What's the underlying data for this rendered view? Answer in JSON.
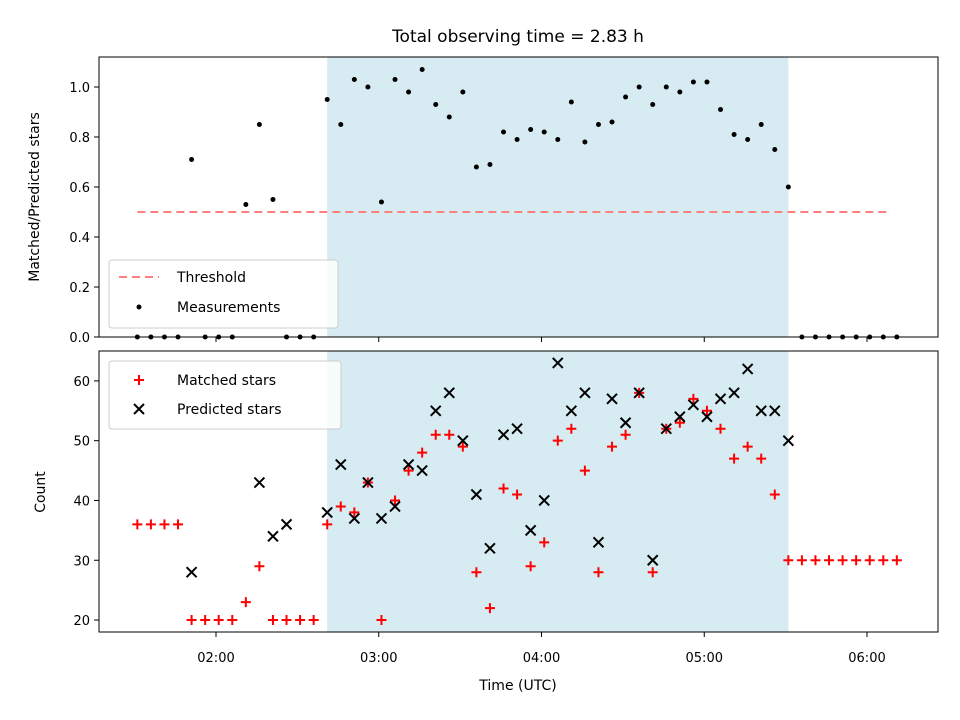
{
  "chart_data": [
    {
      "type": "scatter",
      "title": "Total observing time = 2.83 h",
      "ylabel": "Matched/Predicted stars",
      "xlabel": "",
      "ylim": [
        0,
        1.12
      ],
      "yticks": [
        "0.0",
        "0.2",
        "0.4",
        "0.6",
        "0.8",
        "1.0"
      ],
      "highlight_span": [
        "02:41",
        "05:31"
      ],
      "highlight_color": "#add8e6",
      "legend": {
        "placement": "lower-left",
        "entries": [
          "Threshold",
          "Measurements"
        ]
      },
      "series": [
        {
          "name": "Threshold",
          "style": "dashed-line",
          "color": "#ff7f7f",
          "x": [
            "01:31",
            "06:09"
          ],
          "y": [
            0.5,
            0.5
          ]
        },
        {
          "name": "Measurements",
          "style": "dot",
          "color": "#000000",
          "x": [
            "01:31",
            "01:36",
            "01:41",
            "01:46",
            "01:51",
            "01:56",
            "02:01",
            "02:06",
            "02:11",
            "02:16",
            "02:21",
            "02:26",
            "02:31",
            "02:36",
            "02:41",
            "02:46",
            "02:51",
            "02:56",
            "03:01",
            "03:06",
            "03:11",
            "03:16",
            "03:21",
            "03:26",
            "03:31",
            "03:36",
            "03:41",
            "03:46",
            "03:51",
            "03:56",
            "04:01",
            "04:06",
            "04:11",
            "04:16",
            "04:21",
            "04:26",
            "04:31",
            "04:36",
            "04:41",
            "04:46",
            "04:51",
            "04:56",
            "05:01",
            "05:06",
            "05:11",
            "05:16",
            "05:21",
            "05:26",
            "05:31",
            "05:36",
            "05:41",
            "05:46",
            "05:51",
            "05:56",
            "06:01",
            "06:06",
            "06:11"
          ],
          "y": [
            0,
            0,
            0,
            0,
            0.71,
            0,
            0,
            0,
            0.53,
            0.85,
            0.55,
            0,
            0,
            0,
            0.95,
            0.85,
            1.03,
            1.0,
            0.54,
            1.03,
            0.98,
            1.07,
            0.93,
            0.88,
            0.98,
            0.68,
            0.69,
            0.82,
            0.79,
            0.83,
            0.82,
            0.79,
            0.94,
            0.78,
            0.85,
            0.86,
            0.96,
            1.0,
            0.93,
            1.0,
            0.98,
            1.02,
            1.02,
            0.91,
            0.81,
            0.79,
            0.85,
            0.75,
            0.6,
            0,
            0,
            0,
            0,
            0,
            0,
            0,
            0
          ]
        }
      ]
    },
    {
      "type": "scatter",
      "title": "",
      "xlabel": "Time (UTC)",
      "ylabel": "Count",
      "ylim": [
        18,
        65
      ],
      "yticks": [
        "20",
        "30",
        "40",
        "50",
        "60"
      ],
      "xticks": [
        "02:00",
        "03:00",
        "04:00",
        "05:00",
        "06:00"
      ],
      "highlight_span": [
        "02:41",
        "05:31"
      ],
      "highlight_color": "#add8e6",
      "legend": {
        "placement": "upper-left",
        "entries": [
          "Matched stars",
          "Predicted stars"
        ]
      },
      "series": [
        {
          "name": "Matched stars",
          "style": "plus",
          "color": "#ff0000",
          "x": [
            "01:31",
            "01:36",
            "01:41",
            "01:46",
            "01:51",
            "01:56",
            "02:01",
            "02:06",
            "02:11",
            "02:16",
            "02:21",
            "02:26",
            "02:31",
            "02:36",
            "02:41",
            "02:46",
            "02:51",
            "02:56",
            "03:01",
            "03:06",
            "03:11",
            "03:16",
            "03:21",
            "03:26",
            "03:31",
            "03:36",
            "03:41",
            "03:46",
            "03:51",
            "03:56",
            "04:01",
            "04:06",
            "04:11",
            "04:16",
            "04:21",
            "04:26",
            "04:31",
            "04:36",
            "04:41",
            "04:46",
            "04:51",
            "04:56",
            "05:01",
            "05:06",
            "05:11",
            "05:16",
            "05:21",
            "05:26",
            "05:31",
            "05:36",
            "05:41",
            "05:46",
            "05:51",
            "05:56",
            "06:01",
            "06:06",
            "06:11"
          ],
          "y": [
            36,
            36,
            36,
            36,
            20,
            20,
            20,
            20,
            23,
            29,
            20,
            20,
            20,
            20,
            36,
            39,
            38,
            43,
            20,
            40,
            45,
            48,
            51,
            51,
            49,
            28,
            22,
            42,
            41,
            29,
            33,
            50,
            52,
            45,
            28,
            49,
            51,
            58,
            28,
            52,
            53,
            57,
            55,
            52,
            47,
            49,
            47,
            41,
            30,
            30,
            30,
            30,
            30,
            30,
            30,
            30,
            30
          ]
        },
        {
          "name": "Predicted stars",
          "style": "x",
          "color": "#000000",
          "x": [
            "01:51",
            "02:16",
            "02:21",
            "02:26",
            "02:41",
            "02:46",
            "02:51",
            "02:56",
            "03:01",
            "03:06",
            "03:11",
            "03:16",
            "03:21",
            "03:26",
            "03:31",
            "03:36",
            "03:41",
            "03:46",
            "03:51",
            "03:56",
            "04:01",
            "04:06",
            "04:11",
            "04:16",
            "04:21",
            "04:26",
            "04:31",
            "04:36",
            "04:41",
            "04:46",
            "04:51",
            "04:56",
            "05:01",
            "05:06",
            "05:11",
            "05:16",
            "05:21",
            "05:26",
            "05:31"
          ],
          "y": [
            28,
            43,
            34,
            36,
            38,
            46,
            37,
            43,
            37,
            39,
            46,
            45,
            55,
            58,
            50,
            41,
            32,
            51,
            52,
            35,
            40,
            63,
            55,
            58,
            33,
            57,
            53,
            58,
            30,
            52,
            54,
            56,
            54,
            57,
            58,
            62,
            55,
            55,
            50
          ]
        }
      ]
    }
  ]
}
